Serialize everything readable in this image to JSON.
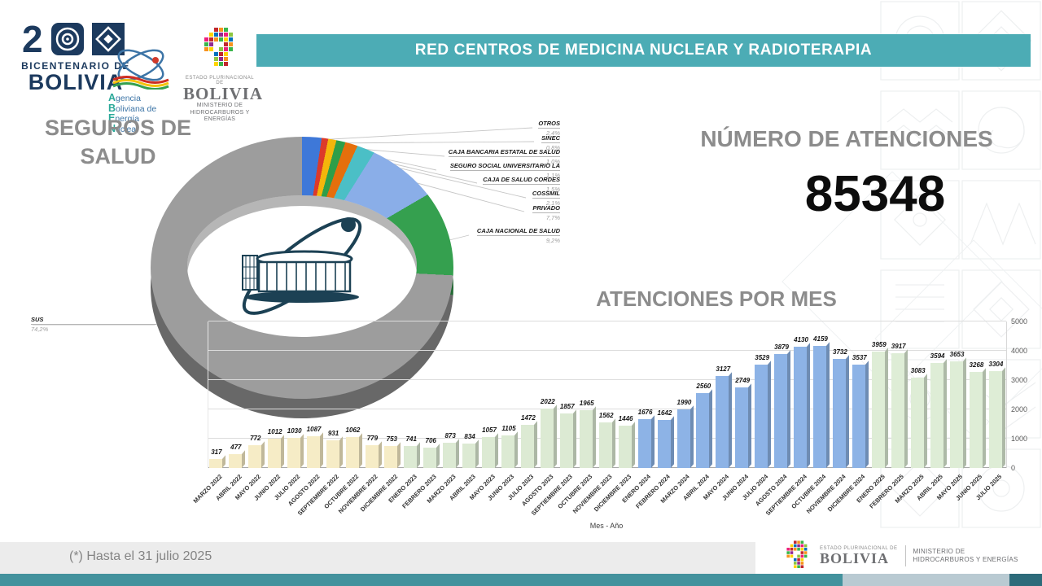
{
  "header": {
    "banner_title": "RED CENTROS DE MEDICINA NUCLEAR Y RADIOTERAPIA",
    "logos": {
      "bicentenario": {
        "top": "BICENTENARIO DE",
        "bottom": "BOLIVIA"
      },
      "aben": {
        "l1a": "A",
        "l1b": "gencia",
        "l2a": "B",
        "l2b": "oliviana de",
        "l3a": "E",
        "l3b": "nergía",
        "l4a": "N",
        "l4b": "uclear"
      },
      "ministerio": {
        "estado": "ESTADO PLURINACIONAL DE",
        "bolivia": "BOLIVIA",
        "ministerio": "MINISTERIO DE",
        "ramo": "HIDROCARBUROS Y ENERGÍAS"
      }
    }
  },
  "kpi": {
    "label": "NÚMERO DE ATENCIONES",
    "value": "85348"
  },
  "chart_data": [
    {
      "type": "pie",
      "donut": true,
      "title": "SEGUROS DE SALUD",
      "labels": [
        "OTROS",
        "SINEC",
        "CAJA BANCARIA ESTATAL DE SALUD",
        "SEGURO SOCIAL UNIVERSITARIO LA",
        "CAJA DE SALUD CORDES",
        "COSSMIL",
        "PRIVADO",
        "CAJA NACIONAL DE SALUD",
        "SUS"
      ],
      "values": [
        2.4,
        0.8,
        1.0,
        1.1,
        1.5,
        2.1,
        7.7,
        9.2,
        74.2
      ],
      "value_labels": [
        "2,4%",
        "0,8%",
        "1,0%",
        "1,1%",
        "1,5%",
        "2,1%",
        "7,7%",
        "9,2%",
        "74,2%"
      ],
      "colors": [
        "#3E78D8",
        "#DC3A2A",
        "#F4B60B",
        "#2E9E49",
        "#E56F0C",
        "#4BBFC6",
        "#8AAEE8",
        "#35A04F",
        "#9D9D9D"
      ]
    },
    {
      "type": "bar",
      "title": "ATENCIONES POR MES",
      "xlabel": "Mes - Año",
      "ylim": [
        0,
        5000
      ],
      "yticks": [
        0,
        1000,
        2000,
        3000,
        4000,
        5000
      ],
      "legend": "none",
      "grid": true,
      "categories": [
        "MARZO 2022",
        "ABRIL 2022",
        "MAYO 2022",
        "JUNIO 2022",
        "JULIO 2022",
        "AGOSTO 2022",
        "SEPTIEMBRE 2022",
        "OCTUBRE 2022",
        "NOVIEMBRE 2022",
        "DICIEMBRE 2022",
        "ENERO 2023",
        "FEBRERO 2023",
        "MARZO 2023",
        "ABRIL 2023",
        "MAYO 2023",
        "JUNIO 2023",
        "JULIO 2023",
        "AGOSTO 2023",
        "SEPTIEMBRE 2023",
        "OCTUBRE 2023",
        "NOVIEMBRE 2023",
        "DICIEMBRE 2023",
        "ENERO 2024",
        "FEBRERO 2024",
        "MARZO 2024",
        "ABRIL 2024",
        "MAYO 2024",
        "JUNIO 2024",
        "JULIO 2024",
        "AGOSTO 2024",
        "SEPTIEMBRE 2024",
        "OCTUBRE 2024",
        "NOVIEMBRE 2024",
        "DICIEMBRE 2024",
        "ENERO 2025",
        "FEBRERO 2025",
        "MARZO 2025",
        "ABRIL 2025",
        "MAYO 2025",
        "JUNIO 2025",
        "JULIO 2025"
      ],
      "values": [
        317,
        477,
        772,
        1012,
        1030,
        1087,
        931,
        1062,
        779,
        753,
        741,
        706,
        873,
        834,
        1057,
        1105,
        1472,
        2022,
        1857,
        1965,
        1562,
        1446,
        1676,
        1642,
        1990,
        2560,
        3127,
        2749,
        3529,
        3879,
        4130,
        4159,
        3732,
        3537,
        3959,
        3917,
        3083,
        3594,
        3653,
        3268,
        3304
      ],
      "year_colors": {
        "2022": "#F6ECC6",
        "2023": "#DCEAD3",
        "2024": "#8DB3E6",
        "2025": "#DEEDD6"
      }
    }
  ],
  "footer": {
    "note": "(*) Hasta el 31 julio 2025",
    "estado": "ESTADO PLURINACIONAL DE",
    "bolivia": "BOLIVIA",
    "ministerio": "MINISTERIO DE",
    "ramo": "HIDROCARBUROS Y ENERGÍAS"
  }
}
